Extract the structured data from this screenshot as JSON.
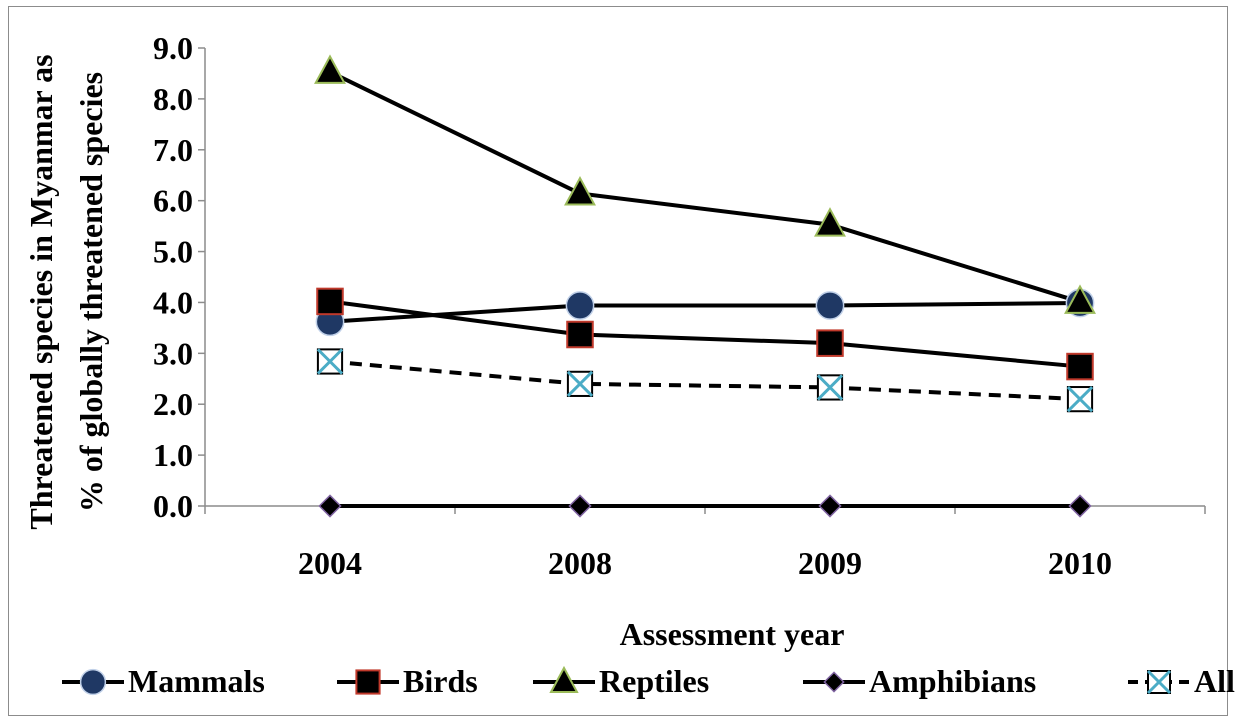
{
  "chart_data": {
    "type": "line",
    "categories": [
      "2004",
      "2008",
      "2009",
      "2010"
    ],
    "xlabel": "Assessment  year",
    "ylabel_line1": "Threatened species in Myanmar as",
    "ylabel_line2": "% of globally threatened  species",
    "ylim": [
      0,
      9
    ],
    "y_ticks": [
      "0.0",
      "1.0",
      "2.0",
      "3.0",
      "4.0",
      "5.0",
      "6.0",
      "7.0",
      "8.0",
      "9.0"
    ],
    "grid": false,
    "legend_position": "bottom",
    "series": [
      {
        "name": "Mammals",
        "values": [
          3.62,
          3.94,
          3.94,
          3.99
        ],
        "marker": "circle",
        "marker_fill": "#1f3864",
        "marker_stroke": "#c0d0e8",
        "line_dash": "solid"
      },
      {
        "name": "Birds",
        "values": [
          4.02,
          3.37,
          3.2,
          2.74
        ],
        "marker": "square",
        "marker_fill": "#000000",
        "marker_stroke": "#c0392b",
        "line_dash": "solid"
      },
      {
        "name": "Reptiles",
        "values": [
          8.53,
          6.14,
          5.53,
          4.01
        ],
        "marker": "triangle",
        "marker_fill": "#000000",
        "marker_stroke": "#9bbb59",
        "line_dash": "solid"
      },
      {
        "name": "Amphibians",
        "values": [
          0.0,
          0.0,
          0.0,
          0.0
        ],
        "marker": "diamond",
        "marker_fill": "#000000",
        "marker_stroke": "#8064a2",
        "line_dash": "solid"
      },
      {
        "name": "All",
        "values": [
          2.84,
          2.4,
          2.33,
          2.1
        ],
        "marker": "xsquare",
        "marker_fill": "#000000",
        "marker_stroke": "#4bacc6",
        "line_dash": "dashed"
      }
    ]
  }
}
